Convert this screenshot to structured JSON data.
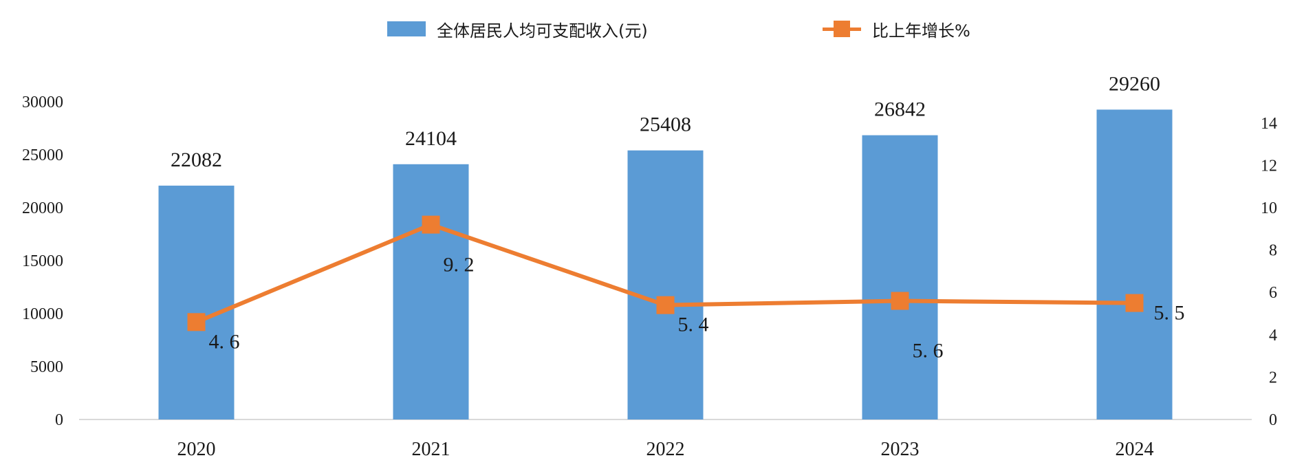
{
  "chart_data": {
    "type": "bar",
    "categories": [
      "2020",
      "2021",
      "2022",
      "2023",
      "2024"
    ],
    "series": [
      {
        "name": "全体居民人均可支配收入(元)",
        "type": "bar",
        "axis": "left",
        "values": [
          22082,
          24104,
          25408,
          26842,
          29260
        ],
        "labels": [
          "22082",
          "24104",
          "25408",
          "26842",
          "29260"
        ],
        "color": "#5b9bd5"
      },
      {
        "name": "比上年增长%",
        "type": "line",
        "axis": "right",
        "values": [
          4.6,
          9.2,
          5.4,
          5.6,
          5.5
        ],
        "labels": [
          "4. 6",
          "9. 2",
          "5. 4",
          "5. 6",
          "5. 5"
        ],
        "color": "#ed7d31"
      }
    ],
    "y_left": {
      "ylim": [
        0,
        30000
      ],
      "ticks": [
        "0",
        "5000",
        "10000",
        "15000",
        "20000",
        "25000",
        "30000"
      ]
    },
    "y_right": {
      "ylim": [
        0,
        15
      ],
      "ticks": [
        "0",
        "2",
        "4",
        "6",
        "8",
        "10",
        "12",
        "14"
      ]
    },
    "legend_position": "top-center",
    "grid": false
  }
}
